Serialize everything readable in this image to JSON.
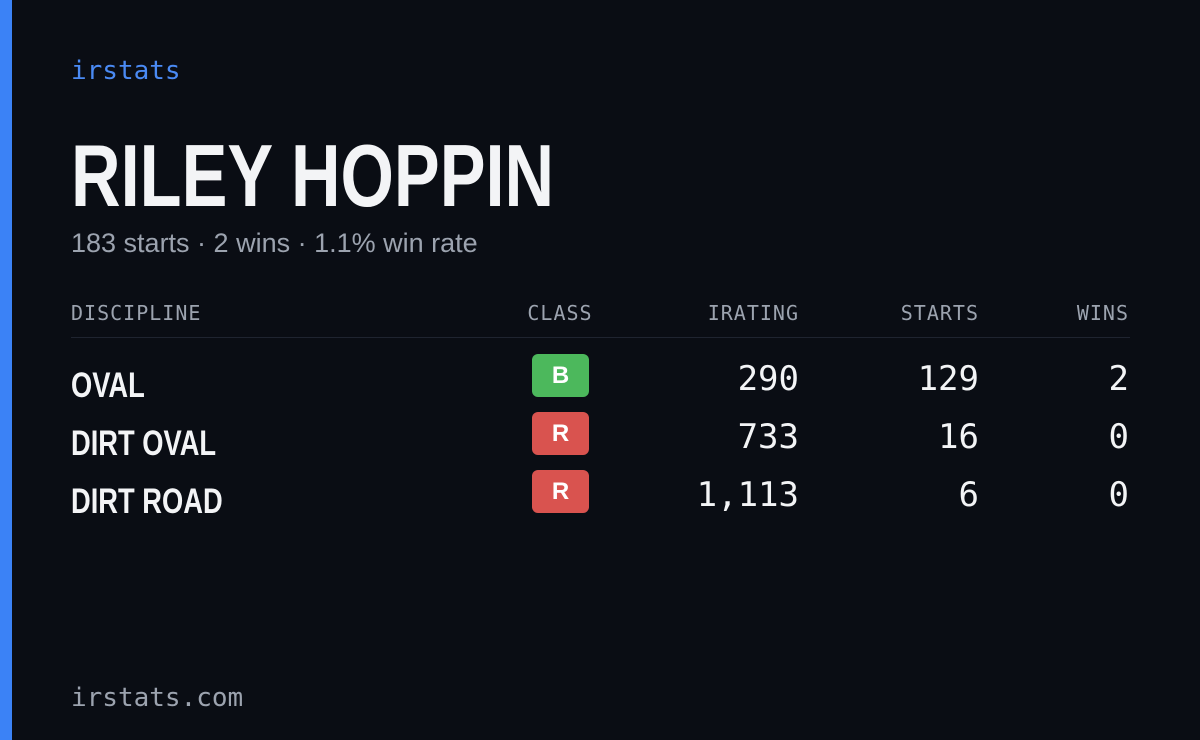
{
  "brand": "irstats",
  "driver": {
    "name": "RILEY HOPPIN",
    "summary": "183 starts · 2 wins · 1.1% win rate"
  },
  "table": {
    "headers": [
      "DISCIPLINE",
      "CLASS",
      "IRATING",
      "STARTS",
      "WINS"
    ],
    "rows": [
      [
        "OVAL",
        "B",
        "290",
        "129",
        "2"
      ],
      [
        "DIRT OVAL",
        "R",
        "733",
        "16",
        "0"
      ],
      [
        "DIRT ROAD",
        "R",
        "1,113",
        "6",
        "0"
      ]
    ],
    "class_colors": {
      "B": "#4cb85c",
      "R": "#d9534f"
    }
  },
  "footer": "irstats.com"
}
